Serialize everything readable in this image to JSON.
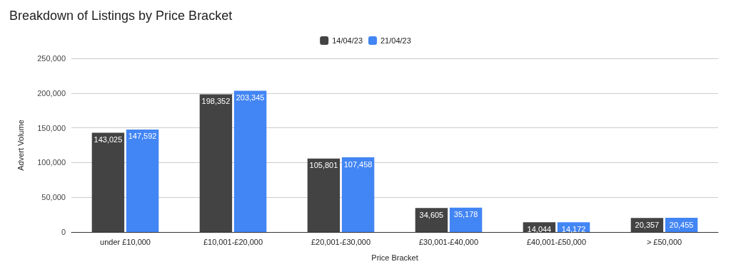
{
  "chart_data": {
    "type": "bar",
    "title": "Breakdown of Listings by Price Bracket",
    "xlabel": "Price Bracket",
    "ylabel": "Advert Volume",
    "categories": [
      "under £10,000",
      "£10,001-£20,000",
      "£20,001-£30,000",
      "£30,001-£40,000",
      "£40,001-£50,000",
      "> £50,000"
    ],
    "series": [
      {
        "name": "14/04/23",
        "color": "#434343",
        "values": [
          143025,
          198352,
          105801,
          34605,
          14044,
          20357
        ],
        "value_labels": [
          "143,025",
          "198,352",
          "105,801",
          "34,605",
          "14,044",
          "20,357"
        ]
      },
      {
        "name": "21/04/23",
        "color": "#4285f4",
        "values": [
          147592,
          203345,
          107458,
          35178,
          14172,
          20455
        ],
        "value_labels": [
          "147,592",
          "203,345",
          "107,458",
          "35,178",
          "14,172",
          "20,455"
        ]
      }
    ],
    "ylim": [
      0,
      250000
    ],
    "yticks": [
      {
        "value": 0,
        "label": "0"
      },
      {
        "value": 50000,
        "label": "50,000"
      },
      {
        "value": 100000,
        "label": "100,000"
      },
      {
        "value": 150000,
        "label": "150,000"
      },
      {
        "value": 200000,
        "label": "200,000"
      },
      {
        "value": 250000,
        "label": "250,000"
      }
    ],
    "grid": "y",
    "legend": "top"
  }
}
